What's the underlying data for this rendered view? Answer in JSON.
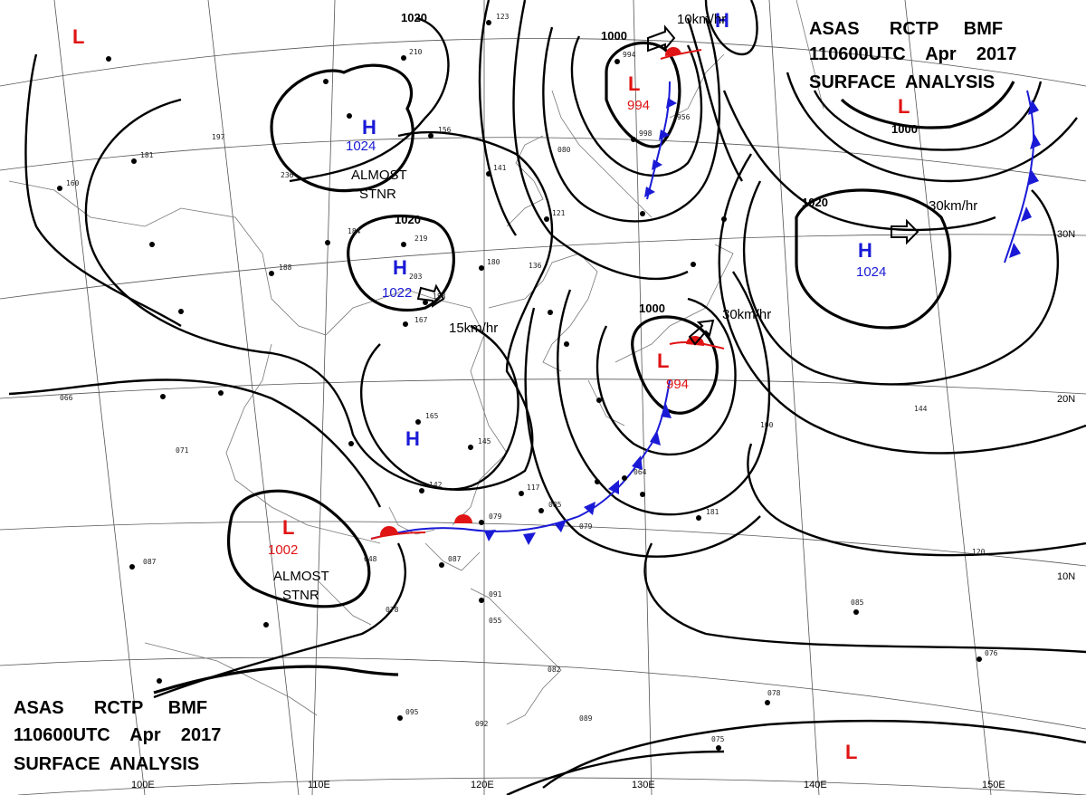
{
  "title_block": {
    "line1": "ASAS      RCTP     BMF",
    "line2": "110600UTC    Apr    2017",
    "line3": "SURFACE  ANALYSIS"
  },
  "isobar_labels": [
    "1020",
    "1000",
    "1020",
    "1000",
    "1020",
    "1000"
  ],
  "pressure_centers": [
    {
      "type": "H",
      "value": "1024"
    },
    {
      "type": "H",
      "value": "1022"
    },
    {
      "type": "H",
      "value": ""
    },
    {
      "type": "H",
      "value": ""
    },
    {
      "type": "H",
      "value": "1024"
    },
    {
      "type": "L",
      "value": "994"
    },
    {
      "type": "L",
      "value": "994"
    },
    {
      "type": "L",
      "value": "1002"
    },
    {
      "type": "L",
      "value": ""
    },
    {
      "type": "L",
      "value": ""
    },
    {
      "type": "L",
      "value": ""
    }
  ],
  "annotations": {
    "almost_stnr_1": "ALMOST",
    "almost_stnr_1b": "STNR",
    "almost_stnr_2": "ALMOST",
    "almost_stnr_2b": "STNR",
    "speed_1": "10km/hr",
    "speed_2": "15km/hr",
    "speed_3": "30km/hr",
    "speed_4": "30km/hr"
  },
  "lat_labels": [
    "30N",
    "20N",
    "10N"
  ],
  "lon_labels": [
    "100E",
    "110E",
    "120E",
    "130E",
    "140E",
    "150E"
  ],
  "colors": {
    "high": "#1a1ad6",
    "low": "#e01414",
    "isobar": "#000000"
  },
  "station_samples": [
    "123",
    "210",
    "156",
    "141",
    "181",
    "160",
    "197",
    "236",
    "184",
    "219",
    "203",
    "158",
    "167",
    "180",
    "188",
    "136",
    "121",
    "080",
    "998",
    "994",
    "956",
    "165",
    "145",
    "142",
    "117",
    "085",
    "079",
    "087",
    "091",
    "055",
    "082",
    "089",
    "095",
    "092",
    "075",
    "076",
    "078",
    "120",
    "085",
    "100",
    "144",
    "071",
    "066",
    "087",
    "078",
    "048",
    "064",
    "079",
    "181"
  ]
}
